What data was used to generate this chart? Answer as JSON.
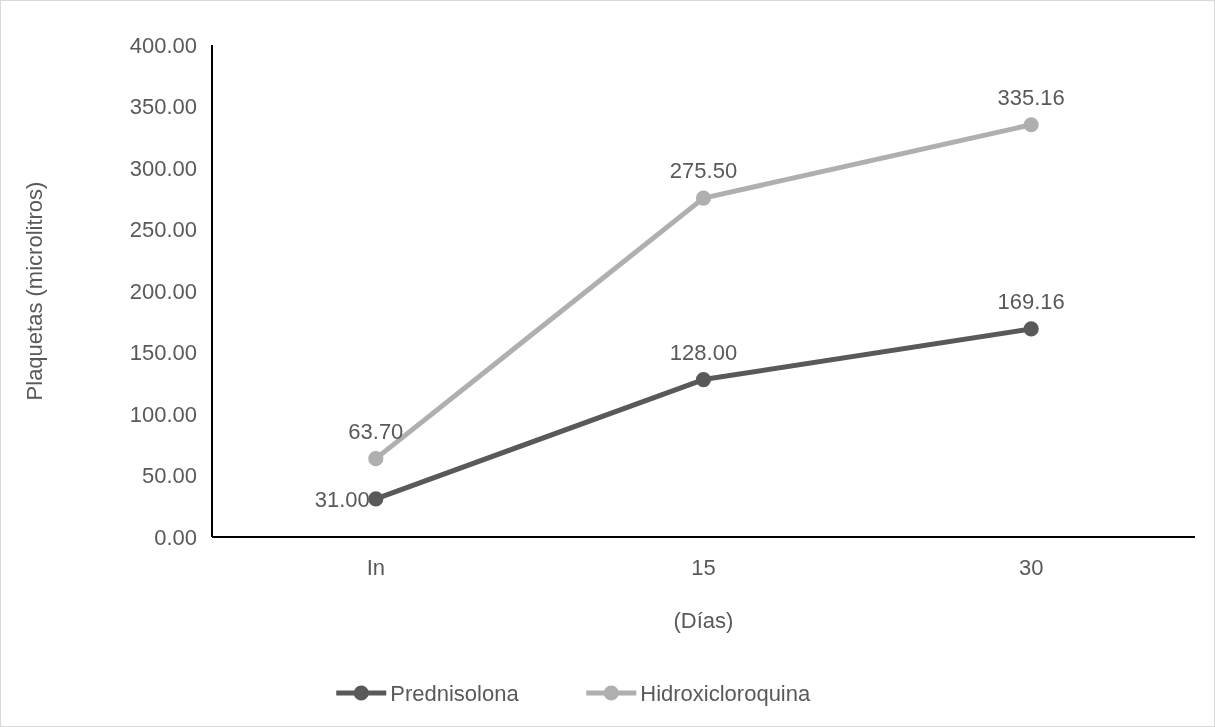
{
  "chart_data": {
    "type": "line",
    "xlabel": "(Días)",
    "ylabel": "Plaquetas (microlitros)",
    "categories": [
      "In",
      "15",
      "30"
    ],
    "series": [
      {
        "name": "Prednisolona",
        "color": "#595959",
        "values": [
          31.0,
          128.0,
          169.16
        ],
        "value_labels": [
          "31.00",
          "128.00",
          "169.16"
        ]
      },
      {
        "name": "Hidroxicloroquina",
        "color": "#afafaf",
        "values": [
          63.7,
          275.5,
          335.16
        ],
        "value_labels": [
          "63.70",
          "275.50",
          "335.16"
        ]
      }
    ],
    "ylim": [
      0,
      400
    ],
    "yticks": [
      {
        "value": 0,
        "label": "0.00"
      },
      {
        "value": 50,
        "label": "50.00"
      },
      {
        "value": 100,
        "label": "100.00"
      },
      {
        "value": 150,
        "label": "150.00"
      },
      {
        "value": 200,
        "label": "200.00"
      },
      {
        "value": 250,
        "label": "250.00"
      },
      {
        "value": 300,
        "label": "300.00"
      },
      {
        "value": 350,
        "label": "350.00"
      },
      {
        "value": 400,
        "label": "400.00"
      }
    ],
    "grid": false,
    "legend": "bottom",
    "marker": "circle",
    "line_style": "solid"
  }
}
